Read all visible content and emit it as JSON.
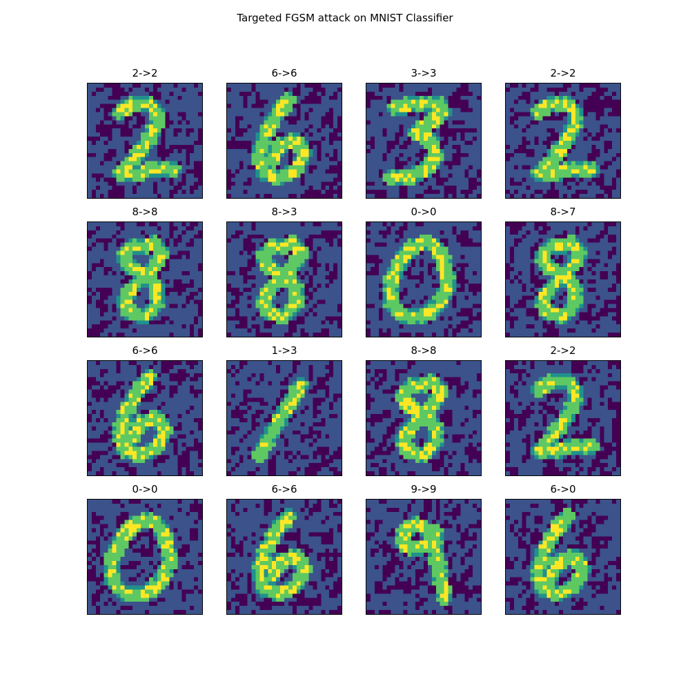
{
  "figure": {
    "title": "Targeted FGSM attack on MNIST Classifier"
  },
  "colors": {
    "low": "#440154",
    "background": "#3b528b",
    "mid": "#5ec962",
    "high": "#fde725",
    "teal": "#21918c"
  },
  "panels": [
    {
      "label": "2->2",
      "digit": "2"
    },
    {
      "label": "6->6",
      "digit": "6"
    },
    {
      "label": "3->3",
      "digit": "3"
    },
    {
      "label": "2->2",
      "digit": "2"
    },
    {
      "label": "8->8",
      "digit": "8"
    },
    {
      "label": "8->3",
      "digit": "8"
    },
    {
      "label": "0->0",
      "digit": "0"
    },
    {
      "label": "8->7",
      "digit": "8"
    },
    {
      "label": "6->6",
      "digit": "6"
    },
    {
      "label": "1->3",
      "digit": "1"
    },
    {
      "label": "8->8",
      "digit": "8"
    },
    {
      "label": "2->2",
      "digit": "2"
    },
    {
      "label": "0->0",
      "digit": "0"
    },
    {
      "label": "6->6",
      "digit": "6"
    },
    {
      "label": "9->9",
      "digit": "9"
    },
    {
      "label": "6->0",
      "digit": "6"
    }
  ]
}
